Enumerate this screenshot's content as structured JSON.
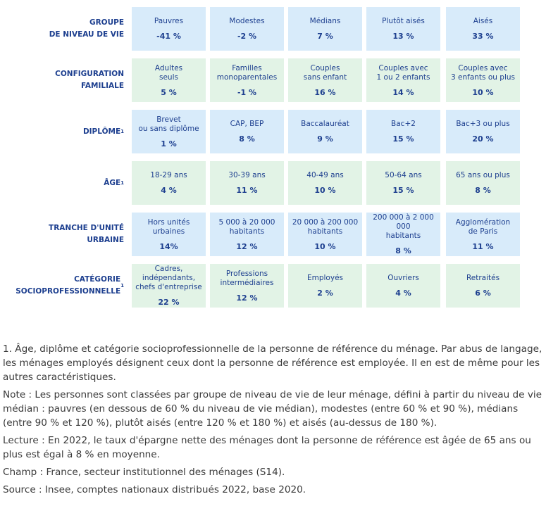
{
  "rows": [
    {
      "label": "GROUPE\nDE NIVEAU DE VIE",
      "sup": "",
      "color": "blue",
      "cells": [
        {
          "name": "Pauvres",
          "value": "-41 %"
        },
        {
          "name": "Modestes",
          "value": "-2 %"
        },
        {
          "name": "Médians",
          "value": "7 %"
        },
        {
          "name": "Plutôt aisés",
          "value": "13 %"
        },
        {
          "name": "Aisés",
          "value": "33 %"
        }
      ]
    },
    {
      "label": "CONFIGURATION\nFAMILIALE",
      "sup": "",
      "color": "green",
      "cells": [
        {
          "name": "Adultes\nseuls",
          "value": "5 %"
        },
        {
          "name": "Familles\nmonoparentales",
          "value": "-1 %"
        },
        {
          "name": "Couples\nsans enfant",
          "value": "16 %"
        },
        {
          "name": "Couples avec\n1 ou 2 enfants",
          "value": "14 %"
        },
        {
          "name": "Couples avec\n3 enfants ou plus",
          "value": "10 %"
        }
      ]
    },
    {
      "label": "DIPLÔME",
      "sup": "1",
      "color": "blue",
      "cells": [
        {
          "name": "Brevet\nou sans diplôme",
          "value": "1 %"
        },
        {
          "name": "CAP, BEP",
          "value": "8 %"
        },
        {
          "name": "Baccalauréat",
          "value": "9 %"
        },
        {
          "name": "Bac+2",
          "value": "15 %"
        },
        {
          "name": "Bac+3 ou plus",
          "value": "20 %"
        }
      ]
    },
    {
      "label": "ÂGE",
      "sup": "1",
      "color": "green",
      "cells": [
        {
          "name": "18-29 ans",
          "value": "4 %"
        },
        {
          "name": "30-39 ans",
          "value": "11 %"
        },
        {
          "name": "40-49 ans",
          "value": "10 %"
        },
        {
          "name": "50-64 ans",
          "value": "15 %"
        },
        {
          "name": "65 ans ou plus",
          "value": "8 %"
        }
      ]
    },
    {
      "label": "TRANCHE D'UNITÉ\nURBAINE",
      "sup": "",
      "color": "blue",
      "cells": [
        {
          "name": "Hors unités\nurbaines",
          "value": "14%"
        },
        {
          "name": "5 000 à 20 000\nhabitants",
          "value": "12 %"
        },
        {
          "name": "20 000 à 200 000\nhabitants",
          "value": "10 %"
        },
        {
          "name": "200 000 à 2 000 000\nhabitants",
          "value": "8 %"
        },
        {
          "name": "Agglomération\nde Paris",
          "value": "11 %"
        }
      ]
    },
    {
      "label": "CATÉGORIE\nSOCIOPROFESSIONNELLE",
      "sup": "1",
      "color": "green",
      "cells": [
        {
          "name": "Cadres,\nindépendants,\nchefs d'entreprise",
          "value": "22 %"
        },
        {
          "name": "Professions\nintermédiaires",
          "value": "12 %"
        },
        {
          "name": "Employés",
          "value": "2 %"
        },
        {
          "name": "Ouvriers",
          "value": "4 %"
        },
        {
          "name": "Retraités",
          "value": "6 %"
        }
      ]
    }
  ],
  "notes": [
    "1. Âge, diplôme et catégorie socioprofessionnelle de la personne de référence du ménage. Par abus de langage, les ménages employés désignent ceux dont la personne de référence est employée. Il en est de même pour les autres caractéristiques.",
    "Note : Les personnes sont classées par groupe de niveau de vie de leur ménage, défini à partir du niveau de vie médian : pauvres (en dessous de 60 % du niveau de vie médian), modestes (entre 60 % et 90 %), médians (entre 90 % et 120 %), plutôt aisés (entre 120 % et 180 %) et aisés (au-dessus de 180 %).",
    "Lecture : En 2022, le taux d'épargne nette des ménages dont la personne de référence est âgée de 65 ans ou plus est égal à 8 % en moyenne.",
    "Champ : France, secteur institutionnel des ménages (S14).",
    "Source : Insee, comptes nationaux distribués 2022, base 2020."
  ],
  "colors": {
    "blue_cell": "#d8ebfa",
    "green_cell": "#e2f3e6",
    "label_text": "#1d3f8f"
  }
}
